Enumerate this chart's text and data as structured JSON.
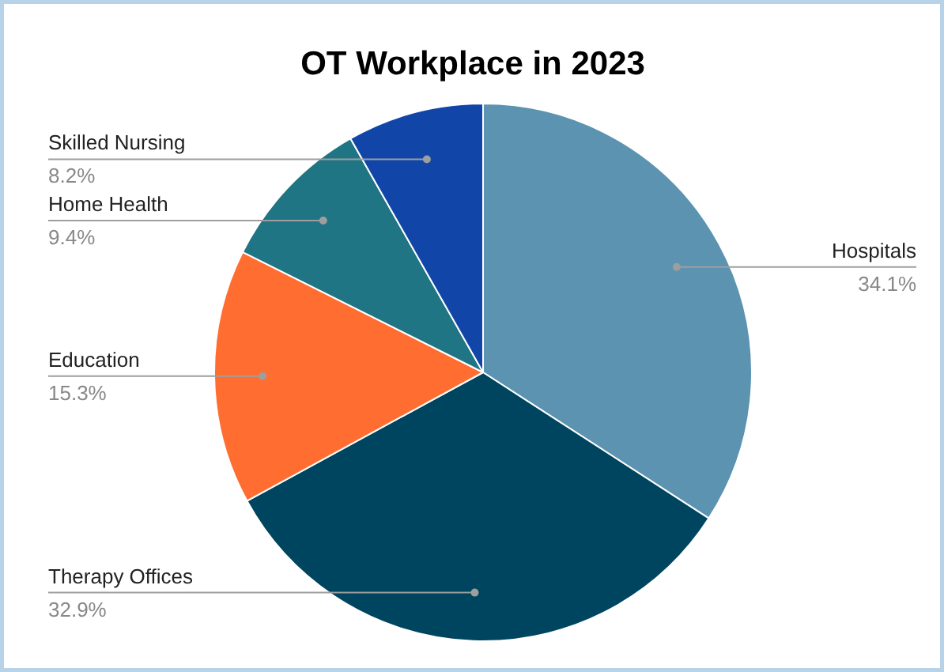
{
  "chart_data": {
    "type": "pie",
    "title": "OT Workplace in 2023",
    "categories": [
      "Hospitals",
      "Therapy Offices",
      "Education",
      "Home Health",
      "Skilled Nursing"
    ],
    "values": [
      34.1,
      32.9,
      15.3,
      9.4,
      8.2
    ],
    "value_labels": [
      "34.1%",
      "32.9%",
      "15.3%",
      "9.4%",
      "8.2%"
    ],
    "colors": [
      "#5b93b0",
      "#00455f",
      "#ff6d31",
      "#1f7583",
      "#1146a8"
    ]
  }
}
